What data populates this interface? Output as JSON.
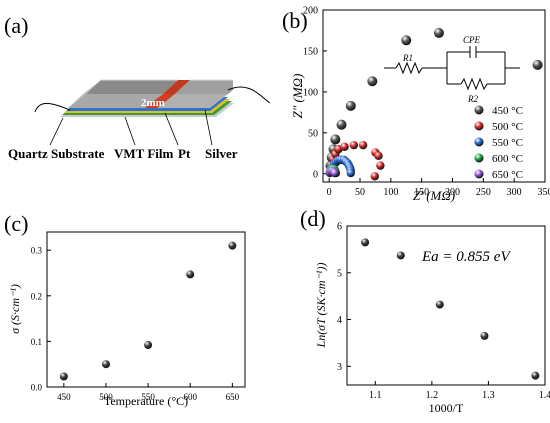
{
  "panels": {
    "a": {
      "tag": "(a)",
      "dimension": "2mm",
      "labels": [
        "Quartz Substrate",
        "VMT Film",
        "Pt",
        "Silver"
      ]
    },
    "b": {
      "tag": "(b)"
    },
    "c": {
      "tag": "(c)"
    },
    "d": {
      "tag": "(d)"
    }
  },
  "circuit": {
    "r1": "R1",
    "cpe": "CPE",
    "r2": "R2"
  },
  "colors": {
    "s450": "#5a5a5a",
    "s500": "#e03030",
    "s550": "#2f6fe0",
    "s600": "#20b050",
    "s650": "#a060e0"
  },
  "chart_data": [
    {
      "panel": "b",
      "type": "scatter",
      "xlabel": "Z′ (MΩ)",
      "ylabel": "Z″ (MΩ)",
      "xlim": [
        -10,
        350
      ],
      "ylim": [
        -10,
        200
      ],
      "xticks": [
        0,
        50,
        100,
        150,
        200,
        250,
        300,
        350
      ],
      "yticks": [
        0,
        50,
        100,
        150,
        200
      ],
      "legend_position": "right",
      "series": [
        {
          "name": "450 °C",
          "color": "#5a5a5a",
          "points": [
            [
              2,
              10
            ],
            [
              4,
              20
            ],
            [
              7,
              30
            ],
            [
              10,
              42
            ],
            [
              20,
              60
            ],
            [
              35,
              83
            ],
            [
              70,
              113
            ],
            [
              125,
              163
            ],
            [
              178,
              172
            ],
            [
              338,
              133
            ]
          ]
        },
        {
          "name": "500 °C",
          "color": "#e03030",
          "points": [
            [
              3,
              10
            ],
            [
              6,
              18
            ],
            [
              10,
              24
            ],
            [
              15,
              30
            ],
            [
              25,
              33
            ],
            [
              40,
              35
            ],
            [
              55,
              35
            ],
            [
              75,
              26
            ],
            [
              80,
              22
            ],
            [
              83,
              10
            ],
            [
              74,
              -3
            ]
          ]
        },
        {
          "name": "550 °C",
          "color": "#2f6fe0",
          "points": [
            [
              2,
              5
            ],
            [
              5,
              9
            ],
            [
              8,
              12
            ],
            [
              11,
              14
            ],
            [
              14,
              16
            ],
            [
              17,
              17
            ],
            [
              20,
              17
            ],
            [
              24,
              17
            ],
            [
              27,
              15
            ],
            [
              30,
              13
            ],
            [
              32,
              10
            ],
            [
              34,
              7
            ],
            [
              35,
              4
            ],
            [
              35,
              1
            ]
          ]
        },
        {
          "name": "600 °C",
          "color": "#20b050",
          "points": [
            [
              1,
              3
            ],
            [
              3,
              5
            ],
            [
              5,
              6
            ],
            [
              7,
              6
            ],
            [
              9,
              5
            ],
            [
              10,
              3
            ],
            [
              11,
              1
            ]
          ]
        },
        {
          "name": "650 °C",
          "color": "#a060e0",
          "points": [
            [
              1,
              1
            ],
            [
              2,
              2
            ],
            [
              4,
              3
            ],
            [
              6,
              3
            ],
            [
              8,
              2
            ],
            [
              9,
              1
            ]
          ]
        }
      ]
    },
    {
      "panel": "c",
      "type": "scatter",
      "xlabel": "Temperature (°C)",
      "ylabel": "σ (S·cm⁻¹)",
      "xlim": [
        430,
        665
      ],
      "ylim": [
        0,
        0.34
      ],
      "xticks": [
        450,
        500,
        550,
        600,
        650
      ],
      "yticks": [
        0.0,
        0.1,
        0.2,
        0.3
      ],
      "x": [
        450,
        500,
        550,
        600,
        650
      ],
      "y": [
        0.023,
        0.05,
        0.092,
        0.247,
        0.31
      ]
    },
    {
      "panel": "d",
      "type": "scatter",
      "xlabel": "1000/T",
      "ylabel": "Ln(σT (SK·cm⁻¹))",
      "xlim": [
        1.05,
        1.4
      ],
      "ylim": [
        2.6,
        6
      ],
      "xticks": [
        1.1,
        1.2,
        1.3,
        1.4
      ],
      "yticks": [
        3,
        4,
        5,
        6
      ],
      "annotation": "Ea = 0.855 eV",
      "x": [
        1.082,
        1.145,
        1.214,
        1.293,
        1.383
      ],
      "y": [
        5.65,
        5.37,
        4.32,
        3.65,
        2.8
      ]
    }
  ]
}
